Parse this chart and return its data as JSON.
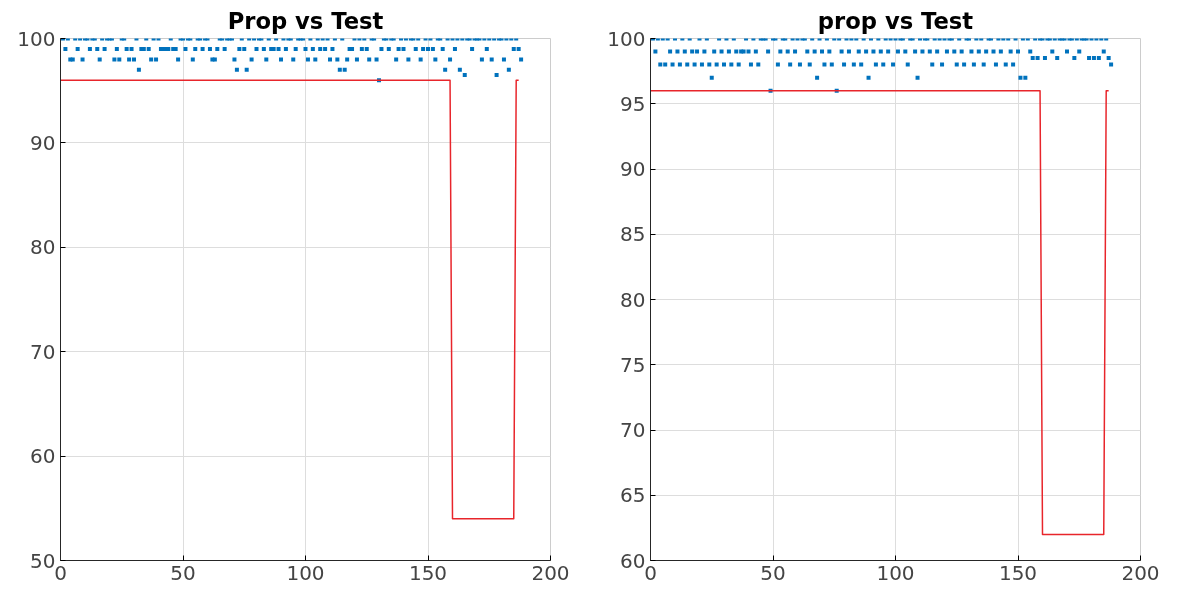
{
  "chart_data": [
    {
      "type": "scatter",
      "title": "Prop vs Test",
      "xlim": [
        0,
        200
      ],
      "xticks": [
        0,
        50,
        100,
        150,
        200
      ],
      "ylim": [
        50,
        100
      ],
      "yticks": [
        50,
        60,
        70,
        80,
        90,
        100
      ],
      "grid": true,
      "marker": "square",
      "series": [
        {
          "type": "scatter",
          "color": "#0072bd",
          "x": [
            1,
            2,
            3,
            4,
            5,
            6,
            7,
            8,
            9,
            10,
            11,
            12,
            13,
            14,
            15,
            16,
            17,
            18,
            19,
            20,
            21,
            22,
            23,
            24,
            25,
            26,
            27,
            28,
            29,
            30,
            31,
            32,
            33,
            34,
            35,
            36,
            37,
            38,
            39,
            40,
            41,
            42,
            43,
            44,
            45,
            46,
            47,
            48,
            49,
            50,
            51,
            52,
            53,
            54,
            55,
            56,
            57,
            58,
            59,
            60,
            61,
            62,
            63,
            64,
            65,
            66,
            67,
            68,
            69,
            70,
            71,
            72,
            73,
            74,
            75,
            76,
            77,
            78,
            79,
            80,
            81,
            82,
            83,
            84,
            85,
            86,
            87,
            88,
            89,
            90,
            91,
            92,
            93,
            94,
            95,
            96,
            97,
            98,
            99,
            100,
            101,
            102,
            103,
            104,
            105,
            106,
            107,
            108,
            109,
            110,
            111,
            112,
            113,
            114,
            115,
            116,
            117,
            118,
            119,
            120,
            121,
            122,
            123,
            124,
            125,
            126,
            127,
            128,
            129,
            130,
            131,
            132,
            133,
            134,
            135,
            136,
            137,
            138,
            139,
            140,
            141,
            142,
            143,
            144,
            145,
            146,
            147,
            148,
            149,
            150,
            151,
            152,
            153,
            154,
            155,
            156,
            157,
            158,
            159,
            160,
            161,
            162,
            163,
            164,
            165,
            166,
            167,
            168,
            169,
            170,
            171,
            172,
            173,
            174,
            175,
            176,
            177,
            178,
            179,
            180,
            181,
            182,
            183,
            184,
            185,
            186,
            187,
            188
          ],
          "values": [
            100,
            99,
            100,
            98,
            98,
            100,
            99,
            100,
            98,
            100,
            100,
            99,
            100,
            100,
            99,
            98,
            100,
            99,
            100,
            100,
            100,
            98,
            99,
            98,
            100,
            100,
            99,
            98,
            99,
            98,
            100,
            97,
            99,
            99,
            100,
            99,
            98,
            100,
            98,
            100,
            99,
            99,
            99,
            99,
            100,
            99,
            99,
            98,
            100,
            100,
            99,
            100,
            100,
            98,
            99,
            100,
            100,
            99,
            100,
            100,
            99,
            98,
            98,
            99,
            100,
            100,
            99,
            100,
            100,
            100,
            98,
            97,
            99,
            100,
            99,
            97,
            100,
            98,
            100,
            99,
            100,
            100,
            99,
            98,
            100,
            99,
            99,
            100,
            99,
            98,
            100,
            99,
            100,
            100,
            98,
            99,
            100,
            100,
            100,
            99,
            98,
            100,
            99,
            98,
            100,
            99,
            100,
            99,
            100,
            98,
            99,
            100,
            98,
            97,
            100,
            97,
            98,
            99,
            99,
            100,
            98,
            100,
            99,
            100,
            99,
            98,
            100,
            100,
            98,
            96,
            99,
            100,
            100,
            99,
            100,
            100,
            98,
            99,
            100,
            99,
            100,
            98,
            100,
            100,
            99,
            100,
            98,
            99,
            100,
            99,
            100,
            99,
            98,
            100,
            100,
            99,
            97,
            100,
            98,
            100,
            99,
            100,
            97,
            100,
            96.5,
            100,
            100,
            99,
            100,
            100,
            100,
            98,
            100,
            99,
            100,
            98,
            100,
            96.5,
            100,
            100,
            98,
            100,
            97,
            100,
            99,
            100,
            99,
            98
          ]
        },
        {
          "type": "line",
          "color": "#e8252b",
          "marker": "none",
          "x": [
            0,
            159,
            160,
            185,
            186,
            187
          ],
          "values": [
            96,
            96,
            54,
            54,
            96,
            96
          ]
        }
      ]
    },
    {
      "type": "scatter",
      "title": "prop vs Test",
      "xlim": [
        0,
        200
      ],
      "xticks": [
        0,
        50,
        100,
        150,
        200
      ],
      "ylim": [
        60,
        100
      ],
      "yticks": [
        60,
        65,
        70,
        75,
        80,
        85,
        90,
        95,
        100
      ],
      "grid": true,
      "marker": "square",
      "series": [
        {
          "type": "scatter",
          "color": "#0072bd",
          "x": [
            1,
            2,
            3,
            4,
            5,
            6,
            7,
            8,
            9,
            10,
            11,
            12,
            13,
            14,
            15,
            16,
            17,
            18,
            19,
            20,
            21,
            22,
            23,
            24,
            25,
            26,
            27,
            28,
            29,
            30,
            31,
            32,
            33,
            34,
            35,
            36,
            37,
            38,
            39,
            40,
            41,
            42,
            43,
            44,
            45,
            46,
            47,
            48,
            49,
            50,
            51,
            52,
            53,
            54,
            55,
            56,
            57,
            58,
            59,
            60,
            61,
            62,
            63,
            64,
            65,
            66,
            67,
            68,
            69,
            70,
            71,
            72,
            73,
            74,
            75,
            76,
            77,
            78,
            79,
            80,
            81,
            82,
            83,
            84,
            85,
            86,
            87,
            88,
            89,
            90,
            91,
            92,
            93,
            94,
            95,
            96,
            97,
            98,
            99,
            100,
            101,
            102,
            103,
            104,
            105,
            106,
            107,
            108,
            109,
            110,
            111,
            112,
            113,
            114,
            115,
            116,
            117,
            118,
            119,
            120,
            121,
            122,
            123,
            124,
            125,
            126,
            127,
            128,
            129,
            130,
            131,
            132,
            133,
            134,
            135,
            136,
            137,
            138,
            139,
            140,
            141,
            142,
            143,
            144,
            145,
            146,
            147,
            148,
            149,
            150,
            151,
            152,
            153,
            154,
            155,
            156,
            157,
            158,
            159,
            160,
            161,
            162,
            163,
            164,
            165,
            166,
            167,
            168,
            169,
            170,
            171,
            172,
            173,
            174,
            175,
            176,
            177,
            178,
            179,
            180,
            181,
            182,
            183,
            184,
            185,
            186,
            187,
            188
          ],
          "values": [
            100,
            99,
            100,
            98,
            100,
            98,
            100,
            99,
            98,
            100,
            99,
            98,
            100,
            99,
            98,
            100,
            99,
            98,
            99,
            100,
            98,
            99,
            100,
            98,
            97,
            99,
            98,
            100,
            99,
            98,
            100,
            99,
            98,
            100,
            99,
            98,
            99,
            99,
            100,
            99,
            98,
            100,
            99,
            98,
            100,
            100,
            100,
            99,
            96,
            100,
            100,
            98,
            99,
            100,
            100,
            99,
            98,
            100,
            99,
            100,
            98,
            100,
            100,
            99,
            98,
            100,
            99,
            97,
            100,
            99,
            98,
            100,
            99,
            98,
            100,
            96,
            100,
            99,
            98,
            100,
            99,
            100,
            98,
            100,
            99,
            98,
            100,
            99,
            97,
            100,
            99,
            98,
            100,
            99,
            98,
            100,
            99,
            100,
            98,
            100,
            99,
            100,
            100,
            99,
            98,
            100,
            100,
            99,
            97,
            100,
            99,
            100,
            100,
            99,
            98,
            100,
            99,
            100,
            98,
            100,
            99,
            100,
            100,
            99,
            98,
            100,
            99,
            98,
            100,
            100,
            99,
            98,
            100,
            99,
            100,
            98,
            99,
            100,
            100,
            99,
            98,
            100,
            99,
            100,
            98,
            100,
            99,
            98,
            100,
            99,
            97,
            100,
            97,
            100,
            99,
            98.5,
            100,
            98.5,
            100,
            100,
            98.5,
            100,
            100,
            99,
            100,
            98.5,
            100,
            100,
            100,
            99,
            100,
            100,
            98.5,
            100,
            99,
            100,
            100,
            100,
            98.5,
            100,
            98.5,
            100,
            98.5,
            100,
            99,
            100,
            98.5,
            98
          ]
        },
        {
          "type": "line",
          "color": "#e8252b",
          "marker": "none",
          "x": [
            0,
            159,
            160,
            185,
            186,
            187
          ],
          "values": [
            96,
            96,
            62,
            62,
            96,
            96
          ]
        }
      ]
    }
  ]
}
